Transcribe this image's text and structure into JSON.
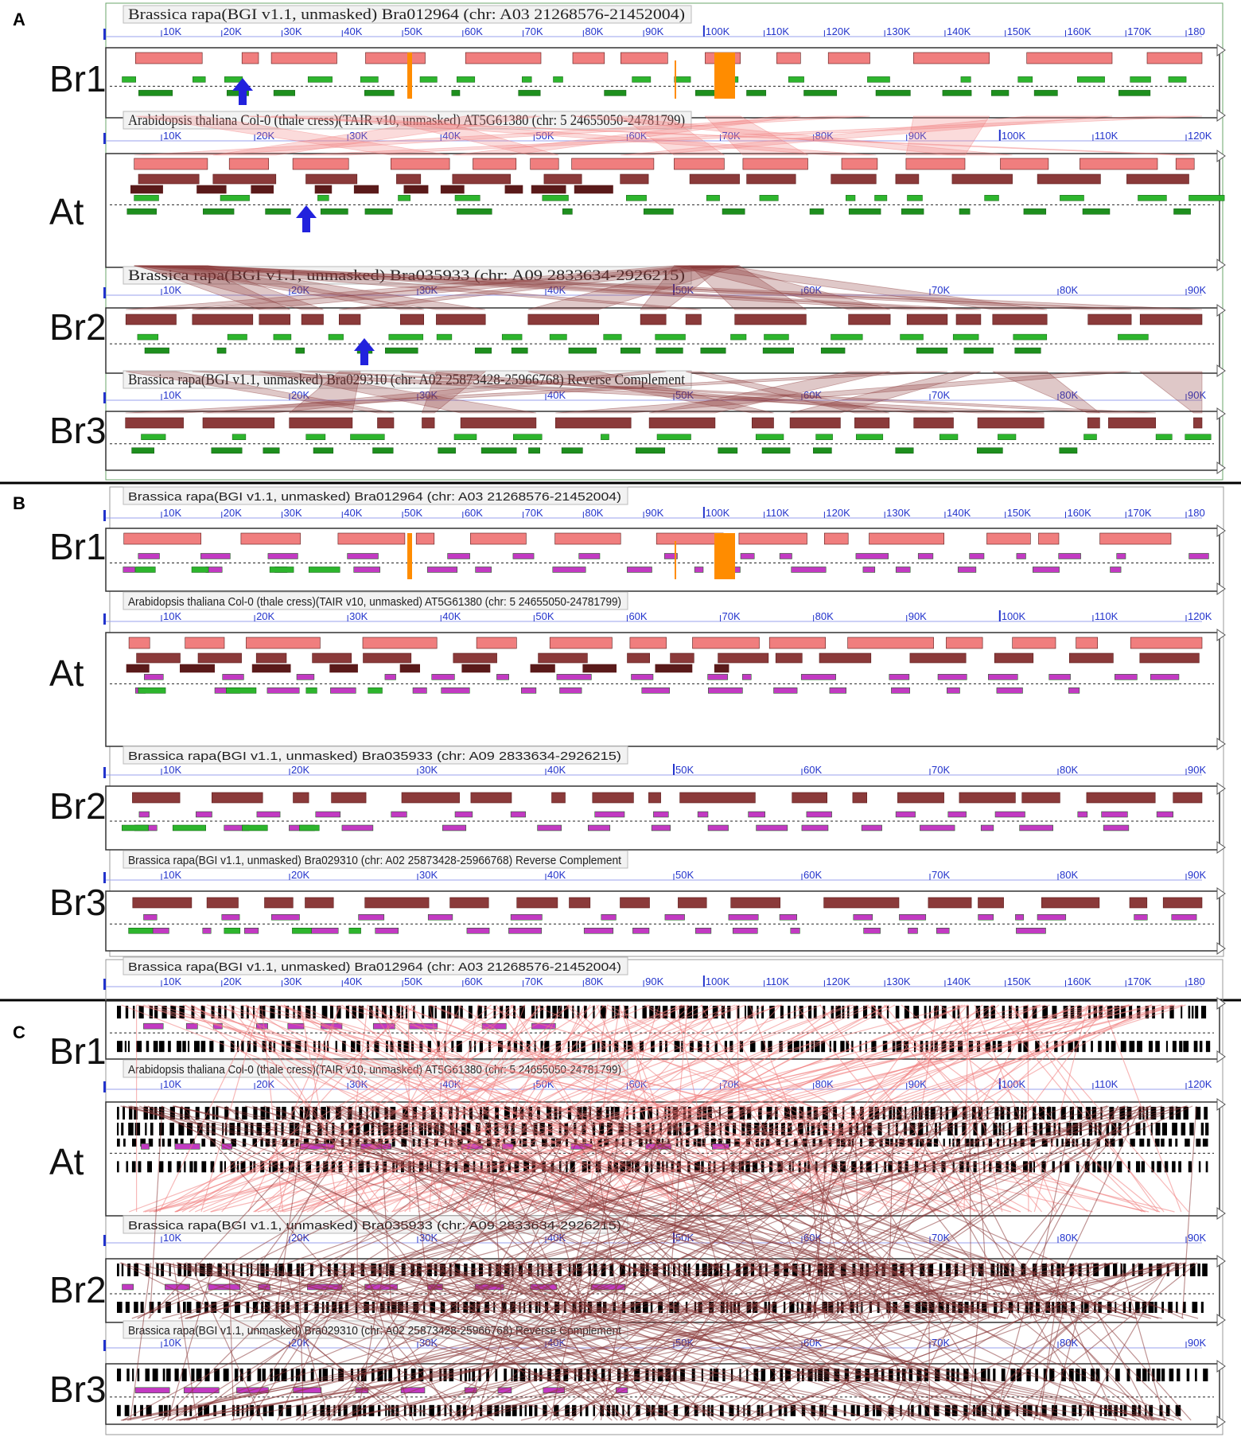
{
  "colors": {
    "salmon": "#f07e7e",
    "maroon": "#8b3a3a",
    "green": "#2db52d",
    "magenta": "#c23ac2",
    "orange": "#ff8c00",
    "blue_arrow": "#2222dd",
    "axis_blue": "#2233cc",
    "title_red": "#e02020",
    "link_salmon": "#f07e7e",
    "link_maroon": "#8b3a3a"
  },
  "icons": [
    "arrow-up-icon",
    "collapse-triangle-icon"
  ],
  "panels": [
    {
      "letter": "A",
      "tracks": [
        {
          "label": "Br1",
          "title": "Brassica rapa(BGI v1.1, unmasked) Bra012964 (chr: A03 21268576-21452004)",
          "title_color": "#222",
          "ticks": [
            "10K",
            "20K",
            "30K",
            "40K",
            "50K",
            "60K",
            "70K",
            "80K",
            "90K",
            "100K",
            "110K",
            "120K",
            "130K",
            "140K",
            "150K",
            "160K",
            "170K",
            "180"
          ]
        },
        {
          "label": "At",
          "title": "Arabidopsis thaliana Col-0 (thale cress)(TAIR v10, unmasked) AT5G61380 (chr: 5 24655050-24781799)",
          "title_color": "#222",
          "ticks": [
            "10K",
            "20K",
            "30K",
            "40K",
            "50K",
            "60K",
            "70K",
            "80K",
            "90K",
            "100K",
            "110K",
            "120K"
          ]
        },
        {
          "label": "Br2",
          "title": "Brassica rapa(BGI v1.1, unmasked) Bra035933 (chr: A09 2833634-2926215)",
          "title_color": "#222",
          "ticks": [
            "10K",
            "20K",
            "30K",
            "40K",
            "50K",
            "60K",
            "70K",
            "80K",
            "90K"
          ]
        },
        {
          "label": "Br3",
          "title": "Brassica rapa(BGI v1.1, unmasked) Bra029310 (chr: A02 25873428-25966768) Reverse Complement",
          "title_color": "#e02020",
          "ticks": [
            "10K",
            "20K",
            "30K",
            "40K",
            "50K",
            "60K",
            "70K",
            "80K",
            "90K"
          ]
        }
      ]
    },
    {
      "letter": "B",
      "tracks": [
        {
          "label": "Br1",
          "title": "Brassica rapa(BGI v1.1, unmasked) Bra012964 (chr: A03 21268576-21452004)",
          "title_color": "#222",
          "ticks": [
            "10K",
            "20K",
            "30K",
            "40K",
            "50K",
            "60K",
            "70K",
            "80K",
            "90K",
            "100K",
            "110K",
            "120K",
            "130K",
            "140K",
            "150K",
            "160K",
            "170K",
            "180"
          ]
        },
        {
          "label": "At",
          "title": "Arabidopsis thaliana Col-0 (thale cress)(TAIR v10, unmasked) AT5G61380 (chr: 5 24655050-24781799)",
          "title_color": "#222",
          "ticks": [
            "10K",
            "20K",
            "30K",
            "40K",
            "50K",
            "60K",
            "70K",
            "80K",
            "90K",
            "100K",
            "110K",
            "120K"
          ]
        },
        {
          "label": "Br2",
          "title": "Brassica rapa(BGI v1.1, unmasked) Bra035933 (chr: A09 2833634-2926215)",
          "title_color": "#222",
          "ticks": [
            "10K",
            "20K",
            "30K",
            "40K",
            "50K",
            "60K",
            "70K",
            "80K",
            "90K"
          ]
        },
        {
          "label": "Br3",
          "title": "Brassica rapa(BGI v1.1, unmasked) Bra029310 (chr: A02 25873428-25966768) Reverse Complement",
          "title_color": "#e02020",
          "ticks": [
            "10K",
            "20K",
            "30K",
            "40K",
            "50K",
            "60K",
            "70K",
            "80K",
            "90K"
          ]
        }
      ]
    },
    {
      "letter": "C",
      "tracks": [
        {
          "label": "Br1",
          "title": "Brassica rapa(BGI v1.1, unmasked) Bra012964 (chr: A03 21268576-21452004)",
          "title_color": "#222",
          "ticks": [
            "10K",
            "20K",
            "30K",
            "40K",
            "50K",
            "60K",
            "70K",
            "80K",
            "90K",
            "100K",
            "110K",
            "120K",
            "130K",
            "140K",
            "150K",
            "160K",
            "170K",
            "180"
          ]
        },
        {
          "label": "At",
          "title": "Arabidopsis thaliana Col-0 (thale cress)(TAIR v10, unmasked) AT5G61380 (chr: 5 24655050-24781799)",
          "title_color": "#bbbbbb",
          "ticks": [
            "10K",
            "20K",
            "30K",
            "40K",
            "50K",
            "60K",
            "70K",
            "80K",
            "90K",
            "100K",
            "110K",
            "120K"
          ]
        },
        {
          "label": "Br2",
          "title": "Brassica rapa(BGI v1.1, unmasked) Bra035933 (chr: A09 2833634-2926215)",
          "title_color": "#bbbbbb",
          "ticks": [
            "10K",
            "20K",
            "30K",
            "40K",
            "50K",
            "60K",
            "70K",
            "80K",
            "90K"
          ]
        },
        {
          "label": "Br3",
          "title": "Brassica rapa(BGI v1.1, unmasked) Bra029310 (chr: A02 25873428-25966768) Reverse Complement",
          "title_color": "#f3a0a0",
          "ticks": [
            "10K",
            "20K",
            "30K",
            "40K",
            "50K",
            "60K",
            "70K",
            "80K",
            "90K"
          ]
        }
      ]
    }
  ]
}
